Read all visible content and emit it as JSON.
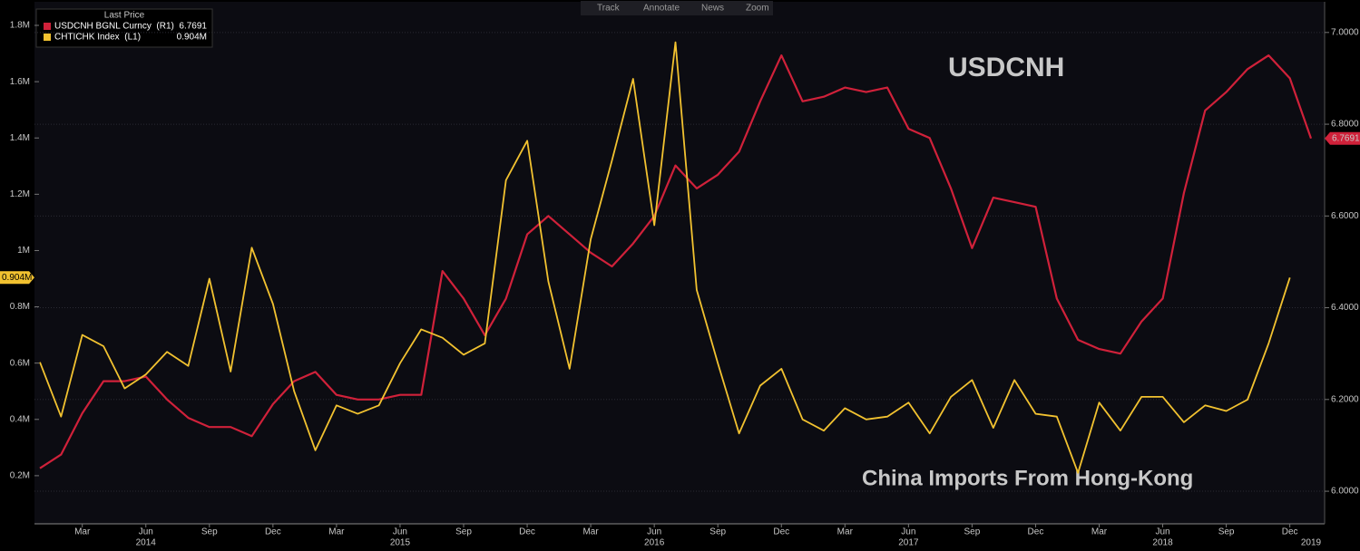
{
  "toolbar": [
    "Track",
    "Annotate",
    "News",
    "Zoom"
  ],
  "chart_data": {
    "type": "line",
    "legend_title": "Last Price",
    "annotations": [
      {
        "text": "USDCNH",
        "color": "#e8102a"
      },
      {
        "text": "China Imports From Hong-Kong",
        "color": "#f2c230"
      }
    ],
    "x": [
      "2014-01",
      "2014-02",
      "2014-03",
      "2014-04",
      "2014-05",
      "2014-06",
      "2014-07",
      "2014-08",
      "2014-09",
      "2014-10",
      "2014-11",
      "2014-12",
      "2015-01",
      "2015-02",
      "2015-03",
      "2015-04",
      "2015-05",
      "2015-06",
      "2015-07",
      "2015-08",
      "2015-09",
      "2015-10",
      "2015-11",
      "2015-12",
      "2016-01",
      "2016-02",
      "2016-03",
      "2016-04",
      "2016-05",
      "2016-06",
      "2016-07",
      "2016-08",
      "2016-09",
      "2016-10",
      "2016-11",
      "2016-12",
      "2017-01",
      "2017-02",
      "2017-03",
      "2017-04",
      "2017-05",
      "2017-06",
      "2017-07",
      "2017-08",
      "2017-09",
      "2017-10",
      "2017-11",
      "2017-12",
      "2018-01",
      "2018-02",
      "2018-03",
      "2018-04",
      "2018-05",
      "2018-06",
      "2018-07",
      "2018-08",
      "2018-09",
      "2018-10",
      "2018-11",
      "2018-12",
      "2019-01"
    ],
    "series": [
      {
        "name": "USDCNH BGNL Curncy  (R1)",
        "color": "#d0213a",
        "axis": "y2",
        "values": [
          6.05,
          6.08,
          6.17,
          6.24,
          6.24,
          6.25,
          6.2,
          6.16,
          6.14,
          6.14,
          6.12,
          6.19,
          6.24,
          6.26,
          6.21,
          6.2,
          6.2,
          6.21,
          6.21,
          6.48,
          6.42,
          6.34,
          6.42,
          6.56,
          6.6,
          6.56,
          6.52,
          6.49,
          6.54,
          6.6,
          6.71,
          6.66,
          6.69,
          6.74,
          6.85,
          6.95,
          6.85,
          6.86,
          6.88,
          6.87,
          6.88,
          6.79,
          6.77,
          6.66,
          6.53,
          6.64,
          6.63,
          6.62,
          6.42,
          6.33,
          6.31,
          6.3,
          6.37,
          6.42,
          6.65,
          6.83,
          6.87,
          6.92,
          6.95,
          6.9,
          6.7691
        ],
        "value_labels": [
          null,
          null,
          null,
          null,
          null,
          null,
          null,
          null,
          null,
          null,
          null,
          null,
          null,
          null,
          null,
          null,
          null,
          null,
          null,
          null,
          null,
          null,
          null,
          null,
          null,
          null,
          null,
          null,
          null,
          null,
          null,
          null,
          null,
          null,
          null,
          null,
          null,
          null,
          null,
          null,
          null,
          null,
          null,
          null,
          null,
          null,
          null,
          null,
          null,
          null,
          null,
          null,
          null,
          null,
          null,
          null,
          null,
          null,
          null,
          null,
          "6.7691"
        ]
      },
      {
        "name": "CHTICHK Index  (L1)",
        "color": "#f2c230",
        "axis": "y",
        "values": [
          603000,
          410000,
          700000,
          660000,
          510000,
          560000,
          640000,
          590000,
          900000,
          570000,
          1010000,
          810000,
          500000,
          290000,
          450000,
          420000,
          450000,
          600000,
          720000,
          690000,
          630000,
          670000,
          1250000,
          1390000,
          890000,
          580000,
          1040000,
          1320000,
          1610000,
          1090000,
          1740000,
          860000,
          600000,
          350000,
          520000,
          580000,
          400000,
          360000,
          440000,
          400000,
          410000,
          460000,
          350000,
          480000,
          540000,
          370000,
          540000,
          420000,
          410000,
          210000,
          460000,
          360000,
          480000,
          480000,
          390000,
          450000,
          430000,
          470000,
          670000,
          904000,
          null
        ],
        "value_labels": [
          null,
          null,
          null,
          null,
          null,
          null,
          null,
          null,
          null,
          null,
          null,
          null,
          null,
          null,
          null,
          null,
          null,
          null,
          null,
          null,
          null,
          null,
          null,
          null,
          null,
          null,
          null,
          null,
          null,
          null,
          null,
          null,
          null,
          null,
          null,
          null,
          null,
          null,
          null,
          null,
          null,
          null,
          null,
          null,
          null,
          null,
          null,
          null,
          null,
          null,
          null,
          null,
          null,
          null,
          null,
          null,
          null,
          null,
          null,
          "0.904M",
          null
        ]
      }
    ],
    "ylim": [
      29000,
      1858000
    ],
    "yticks": [
      {
        "value": 200000,
        "label": "0.2M"
      },
      {
        "value": 400000,
        "label": "0.4M"
      },
      {
        "value": 600000,
        "label": "0.6M"
      },
      {
        "value": 800000,
        "label": "0.8M"
      },
      {
        "value": 1000000,
        "label": "1M"
      },
      {
        "value": 1200000,
        "label": "1.2M"
      },
      {
        "value": 1400000,
        "label": "1.4M"
      },
      {
        "value": 1600000,
        "label": "1.6M"
      },
      {
        "value": 1800000,
        "label": "1.8M"
      }
    ],
    "y2lim": [
      5.929,
      7.051
    ],
    "y2ticks": [
      {
        "value": 6,
        "label": "6.0000"
      },
      {
        "value": 6.2,
        "label": "6.2000"
      },
      {
        "value": 6.4,
        "label": "6.4000"
      },
      {
        "value": 6.6,
        "label": "6.6000"
      },
      {
        "value": 6.8,
        "label": "6.8000"
      },
      {
        "value": 7,
        "label": "7.0000"
      }
    ],
    "xticks": [
      {
        "value": "2014-03",
        "label": "Mar"
      },
      {
        "value": "2014-06",
        "label": "Jun"
      },
      {
        "value": "2014-09",
        "label": "Sep"
      },
      {
        "value": "2014-12",
        "label": "Dec"
      },
      {
        "value": "2015-03",
        "label": "Mar"
      },
      {
        "value": "2015-06",
        "label": "Jun"
      },
      {
        "value": "2015-09",
        "label": "Sep"
      },
      {
        "value": "2015-12",
        "label": "Dec"
      },
      {
        "value": "2016-03",
        "label": "Mar"
      },
      {
        "value": "2016-06",
        "label": "Jun"
      },
      {
        "value": "2016-09",
        "label": "Sep"
      },
      {
        "value": "2016-12",
        "label": "Dec"
      },
      {
        "value": "2017-03",
        "label": "Mar"
      },
      {
        "value": "2017-06",
        "label": "Jun"
      },
      {
        "value": "2017-09",
        "label": "Sep"
      },
      {
        "value": "2017-12",
        "label": "Dec"
      },
      {
        "value": "2018-03",
        "label": "Mar"
      },
      {
        "value": "2018-06",
        "label": "Jun"
      },
      {
        "value": "2018-09",
        "label": "Sep"
      },
      {
        "value": "2018-12",
        "label": "Dec"
      }
    ],
    "year_labels": [
      {
        "value": "2014-06",
        "label": "2014"
      },
      {
        "value": "2015-06",
        "label": "2015"
      },
      {
        "value": "2016-06",
        "label": "2016"
      },
      {
        "value": "2017-06",
        "label": "2017"
      },
      {
        "value": "2018-06",
        "label": "2018"
      },
      {
        "value": "2019-01",
        "label": "2019"
      }
    ],
    "grid": true
  }
}
